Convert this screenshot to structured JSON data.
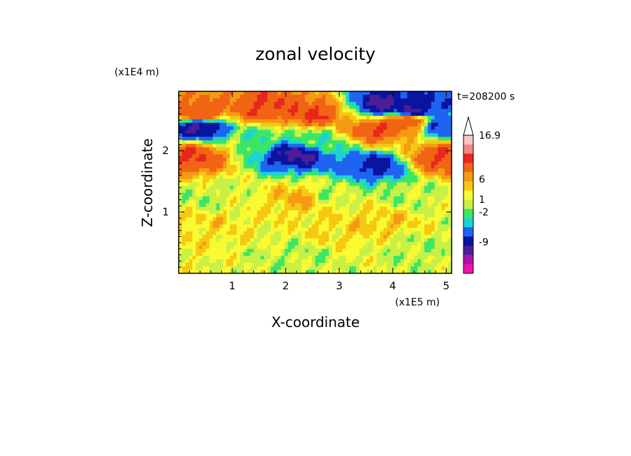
{
  "chart_data": {
    "type": "heatmap",
    "title": "zonal velocity",
    "time_label": "t=208200 s",
    "xlabel": "X-coordinate",
    "ylabel": "Z-coordinate",
    "x_unit": "(x1E5 m)",
    "y_unit": "(x1E4 m)",
    "xlim": [
      0,
      5.1
    ],
    "ylim": [
      0,
      2.97
    ],
    "x_ticks": [
      "1",
      "2",
      "3",
      "4",
      "5"
    ],
    "y_ticks": [
      "1",
      "2"
    ],
    "colorbar": {
      "labels": [
        "16.9",
        "6",
        "1",
        "-2",
        "-9"
      ],
      "levels": [
        {
          "color": "#f7c6c6"
        },
        {
          "color": "#f08a8a"
        },
        {
          "color": "#e8261e"
        },
        {
          "color": "#f06414"
        },
        {
          "color": "#f59a14"
        },
        {
          "color": "#f5c814"
        },
        {
          "color": "#fafa32"
        },
        {
          "color": "#c8f046"
        },
        {
          "color": "#3ce664"
        },
        {
          "color": "#1ed2d2"
        },
        {
          "color": "#1e64f0"
        },
        {
          "color": "#0a14a0"
        },
        {
          "color": "#4b1e96"
        },
        {
          "color": "#aa14aa"
        },
        {
          "color": "#f014aa"
        }
      ],
      "extend_top": true
    },
    "features": [
      {
        "x": 0.4,
        "z": 2.6,
        "value": 6
      },
      {
        "x": 1.6,
        "z": 2.7,
        "value": 6
      },
      {
        "x": 2.5,
        "z": 2.6,
        "value": 6
      },
      {
        "x": 3.7,
        "z": 2.35,
        "value": 6
      },
      {
        "x": 4.3,
        "z": 2.5,
        "value": 6
      },
      {
        "x": 0.25,
        "z": 1.9,
        "value": 6
      },
      {
        "x": 4.9,
        "z": 1.9,
        "value": 6
      },
      {
        "x": 0.4,
        "z": 2.4,
        "value": -7
      },
      {
        "x": 2.2,
        "z": 1.95,
        "value": -7
      },
      {
        "x": 3.85,
        "z": 2.75,
        "value": -7
      },
      {
        "x": 4.4,
        "z": 2.65,
        "value": -7
      },
      {
        "x": 3.65,
        "z": 1.75,
        "value": -5
      },
      {
        "x": 4.95,
        "z": 2.4,
        "value": -4
      },
      {
        "x": 1.6,
        "z": 2.2,
        "value": -1
      },
      {
        "x": 2.6,
        "z": 2.15,
        "value": -1
      },
      {
        "x": 0.5,
        "z": 1.25,
        "value": 0
      },
      {
        "x": 2.8,
        "z": 1.3,
        "value": 0
      },
      {
        "x": 4.2,
        "z": 1.25,
        "value": 0
      },
      {
        "x": 0.5,
        "z": 0.8,
        "value": 1.5
      },
      {
        "x": 2.3,
        "z": 1.25,
        "value": 2.5
      },
      {
        "x": 3.0,
        "z": 0.7,
        "value": 1.5
      },
      {
        "x": 3.8,
        "z": 0.85,
        "value": 2
      },
      {
        "x": 2.2,
        "z": 0.3,
        "value": 0
      },
      {
        "x": 4.4,
        "z": 0.4,
        "value": 0
      }
    ]
  }
}
